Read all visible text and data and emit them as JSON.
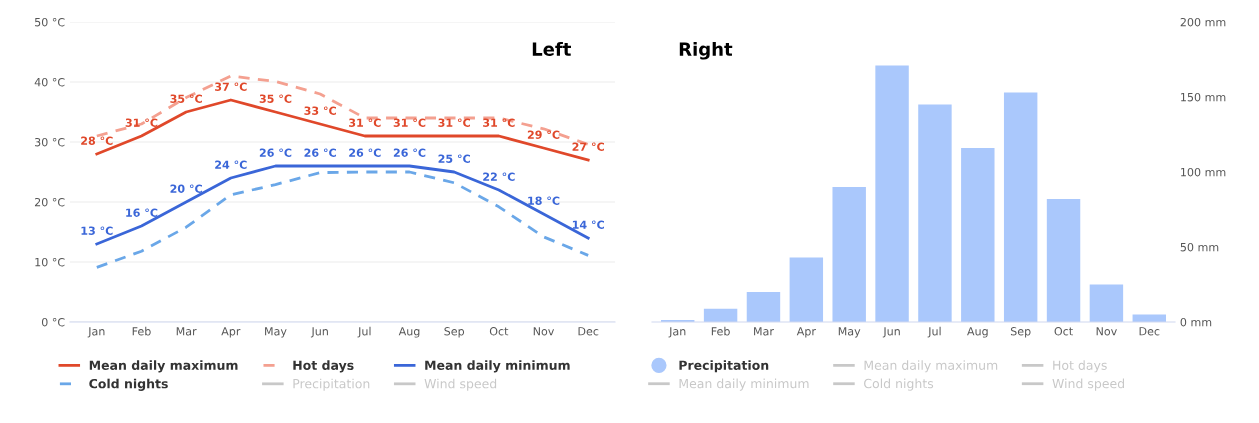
{
  "chart_data": [
    {
      "type": "line",
      "title": "Left",
      "categories": [
        "Jan",
        "Feb",
        "Mar",
        "Apr",
        "May",
        "Jun",
        "Jul",
        "Aug",
        "Sep",
        "Oct",
        "Nov",
        "Dec"
      ],
      "ylim": [
        0,
        50
      ],
      "yticks": [
        {
          "value": 0,
          "label": "0 °C"
        },
        {
          "value": 10,
          "label": "10 °C"
        },
        {
          "value": 20,
          "label": "20 °C"
        },
        {
          "value": 30,
          "label": "30 °C"
        },
        {
          "value": 40,
          "label": "40 °C"
        },
        {
          "value": 50,
          "label": "50 °C"
        }
      ],
      "grid": "y",
      "legend": "bottom",
      "annotations": [
        "Precipitation",
        "Wind speed"
      ],
      "series": [
        {
          "name": "Mean daily maximum",
          "color": "#e0482a",
          "line_style": "solid",
          "values": [
            28,
            31,
            35,
            37,
            35,
            33,
            31,
            31,
            31,
            31,
            29,
            27
          ],
          "value_labels": [
            "28 °C",
            "31 °C",
            "35 °C",
            "37 °C",
            "35 °C",
            "33 °C",
            "31 °C",
            "31 °C",
            "31 °C",
            "31 °C",
            "29 °C",
            "27 °C"
          ]
        },
        {
          "name": "Hot days",
          "color": "#f4a090",
          "line_style": "dashed",
          "values": [
            31,
            33,
            37.4,
            41,
            40.1,
            38,
            34,
            34,
            34,
            34,
            32.2,
            29.6
          ]
        },
        {
          "name": "Mean daily minimum",
          "color": "#3a66d8",
          "line_style": "solid",
          "values": [
            13,
            16,
            20,
            24,
            26,
            26,
            26,
            26,
            25,
            22,
            18,
            14
          ],
          "value_labels": [
            "13 °C",
            "16 °C",
            "20 °C",
            "24 °C",
            "26 °C",
            "26 °C",
            "26 °C",
            "26 °C",
            "25 °C",
            "22 °C",
            "18 °C",
            "14 °C"
          ]
        },
        {
          "name": "Cold nights",
          "color": "#6aa7e8",
          "line_style": "dashed",
          "values": [
            9.1,
            11.8,
            15.8,
            21.2,
            22.9,
            24.9,
            25,
            25,
            23.2,
            19.2,
            14.2,
            11.1
          ]
        }
      ]
    },
    {
      "type": "bar",
      "title": "Right",
      "categories": [
        "Jan",
        "Feb",
        "Mar",
        "Apr",
        "May",
        "Jun",
        "Jul",
        "Aug",
        "Sep",
        "Oct",
        "Nov",
        "Dec"
      ],
      "ylim": [
        0,
        200
      ],
      "yticks": [
        {
          "value": 0,
          "label": "0 mm"
        },
        {
          "value": 50,
          "label": "50 mm"
        },
        {
          "value": 100,
          "label": "100 mm"
        },
        {
          "value": 150,
          "label": "150 mm"
        },
        {
          "value": 200,
          "label": "200 mm"
        }
      ],
      "grid": false,
      "legend": "bottom",
      "annotations": [
        "Mean daily maximum",
        "Hot days",
        "Mean daily minimum",
        "Cold nights",
        "Wind speed"
      ],
      "series": [
        {
          "name": "Precipitation",
          "color": "#aac8fc",
          "values": [
            1.3,
            8.9,
            20,
            43,
            90,
            171,
            145,
            116,
            153,
            82,
            25,
            5
          ]
        }
      ]
    }
  ]
}
